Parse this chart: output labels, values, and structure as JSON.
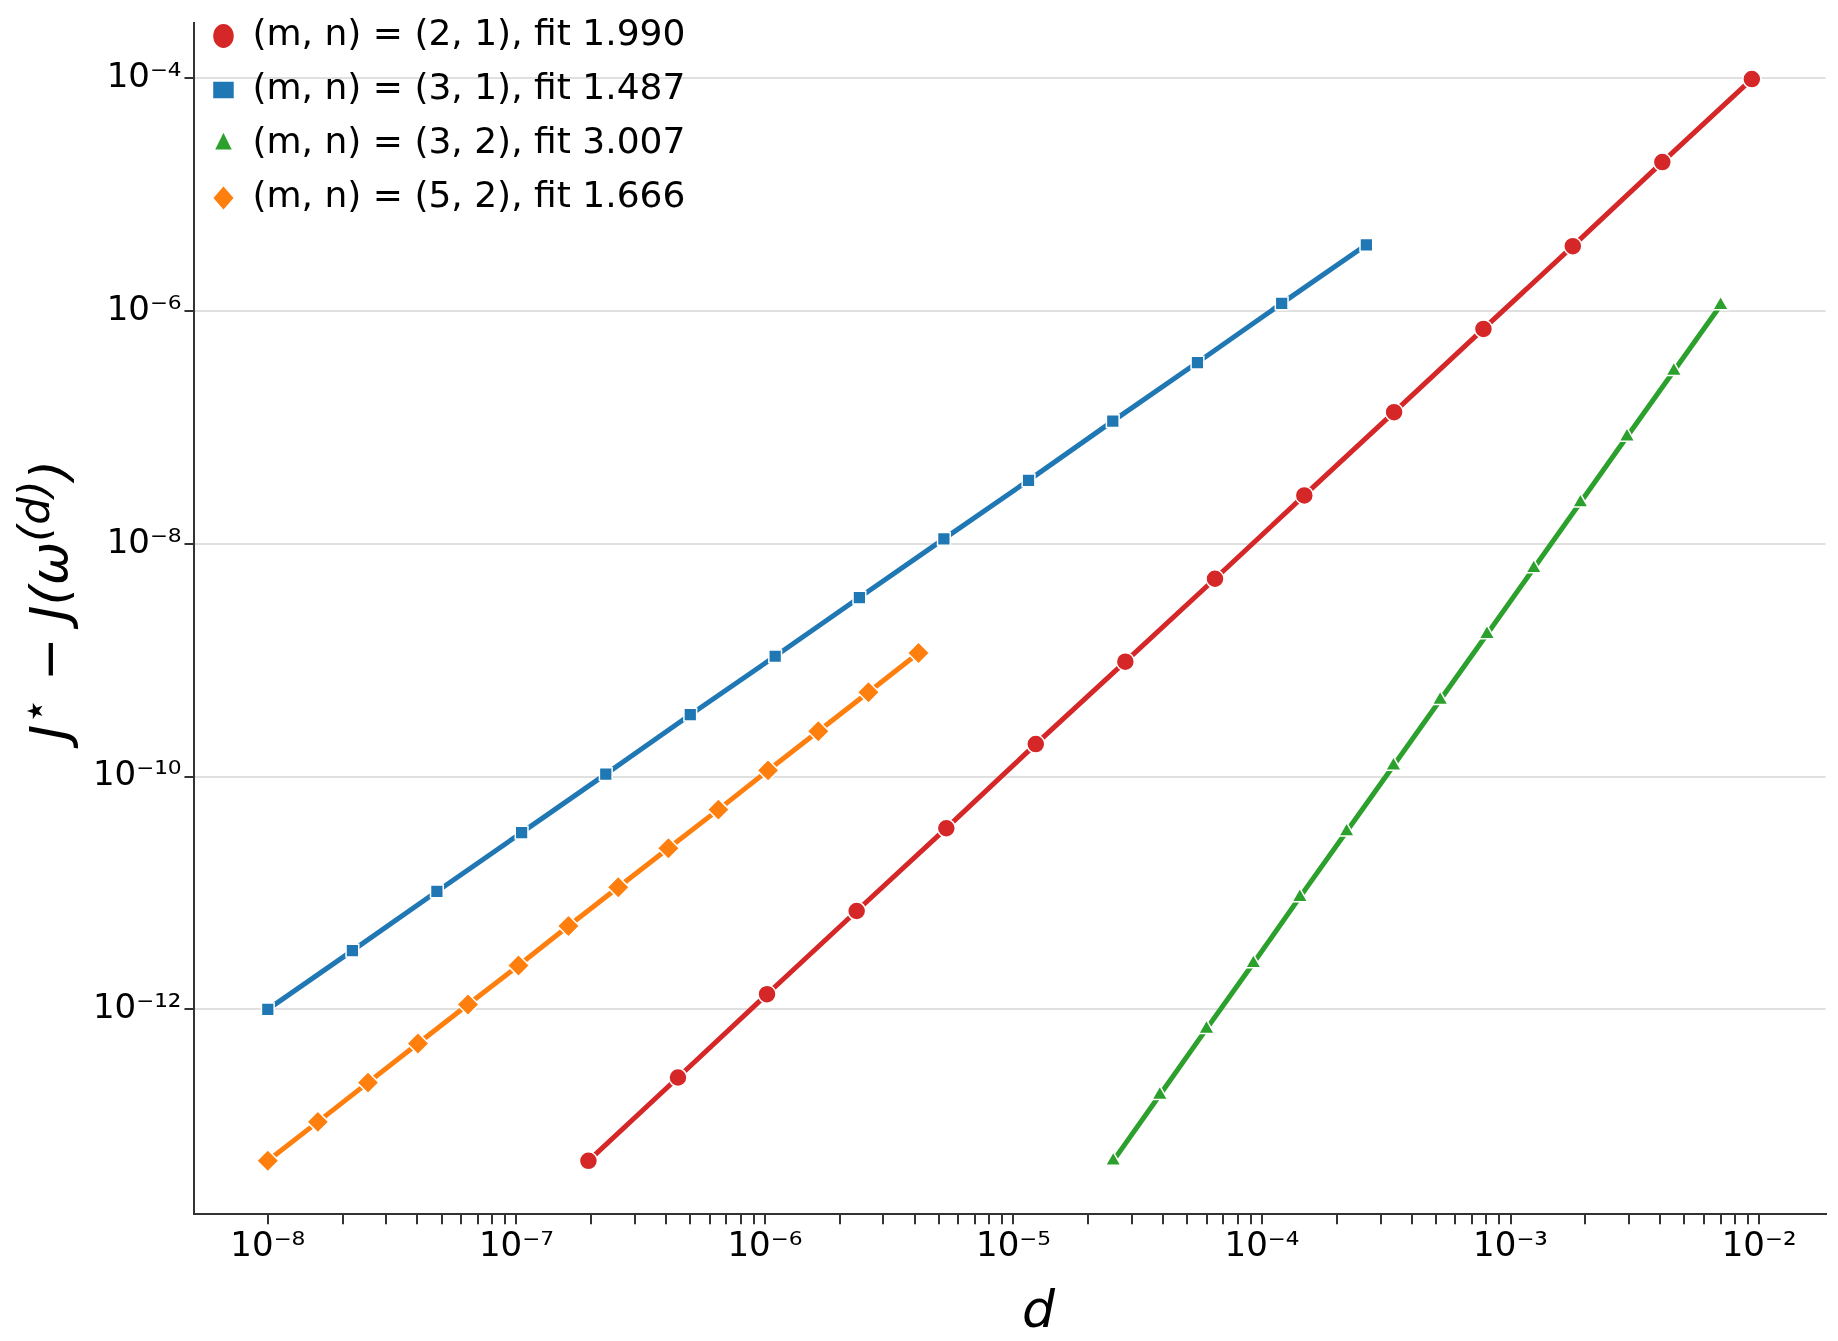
{
  "chart_data": {
    "type": "line",
    "xlabel": "d",
    "ylabel": "J$^{⋆}$ − J(ω$^{(d)}$)",
    "log": "xy",
    "grid": "y",
    "legend": "top left",
    "line_style": "solid",
    "xlim": [
      5.07e-09,
      0.0185
    ],
    "ylim": [
      1.74e-14,
      0.000295
    ],
    "xticks": [
      {
        "value": 1e-08,
        "label": "10⁻⁸"
      },
      {
        "value": 2e-08,
        "label": null
      },
      {
        "value": 3e-08,
        "label": null
      },
      {
        "value": 4e-08,
        "label": null
      },
      {
        "value": 5e-08,
        "label": null
      },
      {
        "value": 6e-08,
        "label": null
      },
      {
        "value": 7e-08,
        "label": null
      },
      {
        "value": 8e-08,
        "label": null
      },
      {
        "value": 9e-08,
        "label": null
      },
      {
        "value": 1e-07,
        "label": "10⁻⁷"
      },
      {
        "value": 2e-07,
        "label": null
      },
      {
        "value": 3e-07,
        "label": null
      },
      {
        "value": 4e-07,
        "label": null
      },
      {
        "value": 5e-07,
        "label": null
      },
      {
        "value": 6e-07,
        "label": null
      },
      {
        "value": 7e-07,
        "label": null
      },
      {
        "value": 8e-07,
        "label": null
      },
      {
        "value": 9e-07,
        "label": null
      },
      {
        "value": 1e-06,
        "label": "10⁻⁶"
      },
      {
        "value": 2e-06,
        "label": null
      },
      {
        "value": 3e-06,
        "label": null
      },
      {
        "value": 4e-06,
        "label": null
      },
      {
        "value": 5e-06,
        "label": null
      },
      {
        "value": 6e-06,
        "label": null
      },
      {
        "value": 7e-06,
        "label": null
      },
      {
        "value": 8e-06,
        "label": null
      },
      {
        "value": 9e-06,
        "label": null
      },
      {
        "value": 1e-05,
        "label": "10⁻⁵"
      },
      {
        "value": 2e-05,
        "label": null
      },
      {
        "value": 3e-05,
        "label": null
      },
      {
        "value": 4e-05,
        "label": null
      },
      {
        "value": 5e-05,
        "label": null
      },
      {
        "value": 6e-05,
        "label": null
      },
      {
        "value": 7e-05,
        "label": null
      },
      {
        "value": 8e-05,
        "label": null
      },
      {
        "value": 9e-05,
        "label": null
      },
      {
        "value": 0.0001,
        "label": "10⁻⁴"
      },
      {
        "value": 0.0002,
        "label": null
      },
      {
        "value": 0.0003,
        "label": null
      },
      {
        "value": 0.0004,
        "label": null
      },
      {
        "value": 0.0005,
        "label": null
      },
      {
        "value": 0.0006,
        "label": null
      },
      {
        "value": 0.0007,
        "label": null
      },
      {
        "value": 0.0008,
        "label": null
      },
      {
        "value": 0.0009,
        "label": null
      },
      {
        "value": 0.001,
        "label": "10⁻³"
      },
      {
        "value": 0.002,
        "label": null
      },
      {
        "value": 0.003,
        "label": null
      },
      {
        "value": 0.004,
        "label": null
      },
      {
        "value": 0.005,
        "label": null
      },
      {
        "value": 0.006,
        "label": null
      },
      {
        "value": 0.007,
        "label": null
      },
      {
        "value": 0.008,
        "label": null
      },
      {
        "value": 0.009,
        "label": null
      },
      {
        "value": 0.01,
        "label": "10⁻²"
      }
    ],
    "yticks": [
      {
        "value": 1e-12,
        "label": "10⁻¹²"
      },
      {
        "value": 1e-10,
        "label": "10⁻¹⁰"
      },
      {
        "value": 1e-08,
        "label": "10⁻⁸"
      },
      {
        "value": 1e-06,
        "label": "10⁻⁶"
      },
      {
        "value": 0.0001,
        "label": "10⁻⁴"
      }
    ],
    "series": [
      {
        "name": "(m, n) = (2, 1), fit 1.990",
        "color": "#d62728",
        "marker": "circle",
        "x": [
          1.95e-07,
          4.47e-07,
          1.02e-06,
          2.34e-06,
          5.37e-06,
          1.23e-05,
          2.82e-05,
          6.47e-05,
          0.000148,
          0.00034,
          0.000778,
          0.00178,
          0.00408,
          0.00935
        ],
        "values": [
          5e-14,
          2.6e-13,
          1.35e-12,
          7e-12,
          3.6e-11,
          1.9e-10,
          9.7e-10,
          5e-09,
          2.6e-08,
          1.35e-07,
          7e-07,
          3.6e-06,
          1.9e-05,
          9.8e-05
        ]
      },
      {
        "name": "(m, n) = (3, 1), fit 1.487",
        "color": "#1f77b4",
        "marker": "square",
        "x": [
          1e-08,
          2.19e-08,
          4.79e-08,
          1.05e-07,
          2.29e-07,
          5.01e-07,
          1.1e-06,
          2.4e-06,
          5.25e-06,
          1.15e-05,
          2.51e-05,
          5.5e-05,
          0.00012,
          0.000263
        ],
        "values": [
          1e-12,
          3.2e-12,
          1.03e-11,
          3.3e-11,
          1.05e-10,
          3.4e-10,
          1.08e-09,
          3.45e-09,
          1.1e-08,
          3.5e-08,
          1.13e-07,
          3.6e-07,
          1.16e-06,
          3.7e-06
        ]
      },
      {
        "name": "(m, n) = (3, 2), fit 3.007",
        "color": "#2ca02c",
        "marker": "triangle",
        "x": [
          2.52e-05,
          3.88e-05,
          5.98e-05,
          9.23e-05,
          0.000142,
          0.000219,
          0.000338,
          0.000521,
          0.000804,
          0.00124,
          0.00191,
          0.00294,
          0.00454,
          0.007
        ],
        "values": [
          5e-14,
          1.84e-13,
          6.8e-13,
          2.49e-12,
          9.2e-12,
          3.37e-11,
          1.24e-10,
          4.55e-10,
          1.67e-09,
          6.15e-09,
          2.26e-08,
          8.3e-08,
          3.05e-07,
          1.12e-06
        ]
      },
      {
        "name": "(m, n) = (5, 2), fit 1.666",
        "color": "#ff7f0e",
        "marker": "diamond",
        "x": [
          1e-08,
          1.59e-08,
          2.53e-08,
          4.02e-08,
          6.39e-08,
          1.02e-07,
          1.62e-07,
          2.57e-07,
          4.09e-07,
          6.5e-07,
          1.03e-06,
          1.64e-06,
          2.61e-06,
          4.15e-06
        ],
        "values": [
          5e-14,
          1.08e-13,
          2.35e-13,
          5.1e-13,
          1.1e-12,
          2.38e-12,
          5.2e-12,
          1.12e-11,
          2.42e-11,
          5.2e-11,
          1.13e-10,
          2.45e-10,
          5.3e-10,
          1.15e-09
        ]
      }
    ]
  }
}
